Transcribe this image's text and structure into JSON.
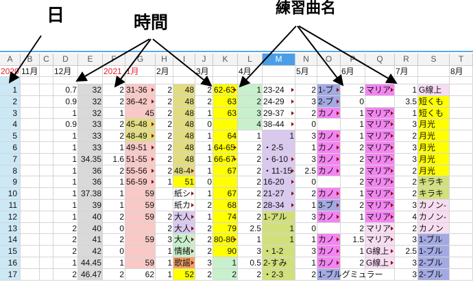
{
  "annotations": {
    "day": "日",
    "time": "時間",
    "piece": "練習曲名"
  },
  "columns": [
    "A",
    "B",
    "C",
    "D",
    "E",
    "F",
    "G",
    "H",
    "I",
    "J",
    "K",
    "L",
    "M",
    "N",
    "O",
    "P",
    "Q",
    "R",
    "S",
    "T"
  ],
  "selected_column": "M",
  "months": [
    "2020",
    "11月",
    "",
    "12月",
    "",
    "2021",
    "1月",
    "2月",
    "",
    "3月",
    "",
    "4月",
    "",
    "5月",
    "",
    "6月",
    "",
    "7月",
    "",
    "8月"
  ],
  "month_red": [
    true,
    false,
    false,
    false,
    false,
    true,
    true,
    false,
    false,
    false,
    false,
    false,
    false,
    false,
    false,
    false,
    false,
    false,
    false,
    false
  ],
  "palette": {
    "a": "#cde8f5",
    "g": "#d9d9d9",
    "p": "#f8c9c6",
    "o": "#e2dc80",
    "y": "#ffff00",
    "l": "#c8f0cc",
    "v": "#d9c9ef",
    "k": "#d2e07c",
    "m": "#f285f0",
    "b": "#a3a9e2",
    "s": "#f7ddf2",
    "r": "#f2a264",
    "w": ""
  },
  "rows": [
    {
      "cells": [
        "1",
        "",
        "",
        "0.7",
        "32",
        "2",
        "31-36",
        "2",
        "48",
        "2",
        "62-63",
        "1",
        "23-24",
        "2",
        "1-ブ",
        "2",
        "マリア",
        "1",
        "G線上",
        ""
      ],
      "fill": "awwwgwpwowylwwbwmwsw"
    },
    {
      "cells": [
        "2",
        "",
        "",
        "0.9",
        "32",
        "2",
        "36-42",
        "2",
        "48",
        "2",
        "63",
        "2",
        "24-29",
        "3",
        "2-ブ",
        "0",
        "",
        "3.5",
        "短くも",
        ""
      ],
      "fill": "awwwgwpwowylwwbwwwyw"
    },
    {
      "cells": [
        "3",
        "",
        "",
        "1",
        "32",
        "1",
        "45",
        "2",
        "48",
        "1",
        "63",
        "3",
        "29-37",
        "2",
        "カノ",
        "1",
        "マリア",
        "1",
        "短くも",
        ""
      ],
      "fill": "awwwgwpwowylwwmwmwyw"
    },
    {
      "cells": [
        "4",
        "",
        "",
        "0.9",
        "33",
        "2",
        "45-48",
        "2",
        "48",
        "0",
        "",
        "4",
        "38-44",
        "0",
        "",
        "1",
        "マリア",
        "3",
        "月光",
        ""
      ],
      "fill": "awwwgwowowylwwwwmwyw"
    },
    {
      "cells": [
        "5",
        "",
        "",
        "1",
        "33",
        "2",
        "48-49",
        "2",
        "48",
        "1",
        "64",
        "1",
        "1",
        "3",
        "カノ",
        "1",
        "マリア",
        "2",
        "月光",
        ""
      ],
      "fill": "awwwgwowowywvwmwmwyw"
    },
    {
      "cells": [
        "6",
        "",
        "",
        "1",
        "33",
        "1",
        "49-51",
        "2",
        "48",
        "1",
        "64-65",
        "2",
        "・2-5",
        "1",
        "カノ",
        "2",
        "マリア",
        "3",
        "月光",
        ""
      ],
      "fill": "awwwgwpwowywvwmwmwyw"
    },
    {
      "cells": [
        "7",
        "",
        "",
        "1",
        "34.35",
        "1.6",
        "51-55",
        "2",
        "48",
        "1",
        "66-67",
        "2",
        "・6-10",
        "3",
        "カノ",
        "2",
        "マリア",
        "3",
        "月光",
        ""
      ],
      "fill": "awwwgwpwowywvwmwmwyw"
    },
    {
      "cells": [
        "8",
        "",
        "",
        "1",
        "36",
        "2",
        "55-56",
        "2",
        "48-4",
        "1",
        "67",
        "2",
        "・11-15",
        "2.5",
        "カノ",
        "2",
        "マリア",
        "2",
        "月光",
        ""
      ],
      "fill": "awwwgwpwowywvwmwmwyw"
    },
    {
      "cells": [
        "9",
        "",
        "",
        "1",
        "36",
        "1",
        "56-59",
        "1",
        "51",
        "0",
        "",
        "2",
        "16-20",
        "0",
        "",
        "2",
        "マリア",
        "2",
        "キラキ",
        ""
      ],
      "fill": "awwwgwpwywywvwwwmwkw"
    },
    {
      "cells": [
        "10",
        "",
        "",
        "1",
        "37.38",
        "1",
        "59",
        "",
        "紙シ",
        "1",
        "67",
        "2",
        "21-27",
        "2",
        "カノ",
        "1",
        "マリア",
        "2",
        "キラキ",
        ""
      ],
      "fill": "awwwgwpwwwywvwmwmwkw"
    },
    {
      "cells": [
        "11",
        "",
        "",
        "1",
        "39",
        "1",
        "59",
        "",
        "紙カ",
        "2",
        "68",
        "2",
        "28-34",
        "1",
        "3-ブ",
        "2",
        "マリア",
        "3",
        "カノン-",
        ""
      ],
      "fill": "awwwgwpwwwywvwbwmwsw"
    },
    {
      "cells": [
        "12",
        "",
        "",
        "1",
        "40",
        "2",
        "59",
        "2",
        "大人",
        "1",
        "74",
        "2",
        "1-アル",
        "3",
        "カノ",
        "1",
        "マリア",
        "4",
        "カノン-",
        ""
      ],
      "fill": "awwwgwpwvwywkwmwmwsw"
    },
    {
      "cells": [
        "13",
        "",
        "",
        "2",
        "40",
        "0",
        "",
        "2",
        "大人",
        "2",
        "79",
        "2.5",
        "1",
        "0",
        "",
        "2",
        "マリア",
        "2",
        "カノン",
        ""
      ],
      "fill": "awwwgwpwvwywkwwwswsw"
    },
    {
      "cells": [
        "14",
        "",
        "",
        "2",
        "41",
        "2",
        "59",
        "3",
        "大人",
        "2",
        "80-86",
        "1",
        "1",
        "1",
        "カノ",
        "1.5",
        "マリア",
        "3",
        "1-ブル",
        ""
      ],
      "fill": "awwwgwpwlwywkwmwswbw"
    },
    {
      "cells": [
        "15",
        "",
        "",
        "2",
        "42",
        "0",
        "",
        "1",
        "情緒",
        "2",
        "90",
        "3",
        "・1-2",
        "3",
        "カノ",
        "1",
        "G線上",
        "2.5",
        "1-ブル",
        ""
      ],
      "fill": "awwwgwpwlwywkwmwswbw"
    },
    {
      "cells": [
        "16",
        "",
        "",
        "1",
        "44.45",
        "1",
        "59",
        "1",
        "歌謡",
        "3",
        "1",
        "0.5",
        "2-すみ",
        "1",
        "カノ",
        "2",
        "G線上",
        "3",
        "2-ブル",
        ""
      ],
      "fill": "awwwgwpwrwlwkwmwswbw"
    },
    {
      "cells": [
        "17",
        "",
        "",
        "2",
        "46.47",
        "2",
        "62",
        "1",
        "52",
        "2",
        "2",
        "2",
        "・2-3",
        "2",
        "1-ブルグミュラー",
        "",
        "",
        "3",
        "2-ブル",
        ""
      ],
      "fill": "awwwgwwwywlwkwbwwwbw"
    }
  ]
}
